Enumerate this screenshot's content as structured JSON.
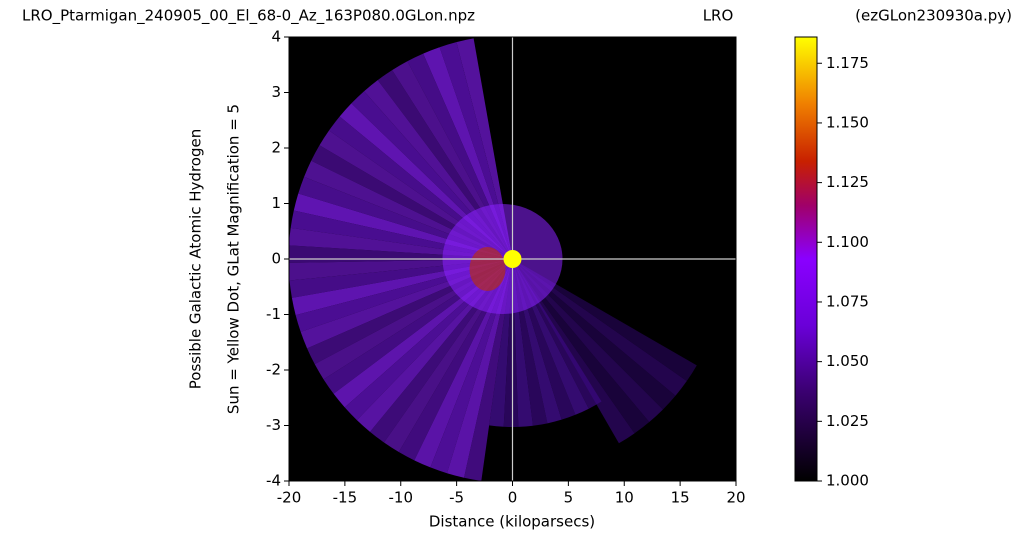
{
  "chart_data": {
    "type": "heatmap",
    "title": "LRO_Ptarmigan_240905_00_El_68-0_Az_163P080.0GLon.npz",
    "title_center": "LRO",
    "title_right": "(ezGLon230930a.py)",
    "xlabel": "Distance (kiloparsecs)",
    "ylabel": "Sun = Yellow Dot, GLat Magnification = 5",
    "ylabel2": "Possible Galactic Atomic Hydrogen",
    "xlim": [
      -20,
      20
    ],
    "ylim": [
      -4,
      4
    ],
    "xticks": [
      -20,
      -15,
      -10,
      -5,
      0,
      5,
      10,
      15,
      20
    ],
    "yticks": [
      -4,
      -3,
      -2,
      -1,
      0,
      1,
      2,
      3,
      4
    ],
    "sun": {
      "x": 0,
      "y": 0,
      "color": "#ffff00"
    },
    "colormap": "gnuplot",
    "clim": [
      1.0,
      1.186
    ],
    "cticks": [
      {
        "value": 1.0,
        "label": "1.000"
      },
      {
        "value": 1.025,
        "label": "1.025"
      },
      {
        "value": 1.05,
        "label": "1.050"
      },
      {
        "value": 1.075,
        "label": "1.075"
      },
      {
        "value": 1.1,
        "label": "1.100"
      },
      {
        "value": 1.125,
        "label": "1.125"
      },
      {
        "value": 1.15,
        "label": "1.150"
      },
      {
        "value": 1.175,
        "label": "1.175"
      }
    ]
  }
}
